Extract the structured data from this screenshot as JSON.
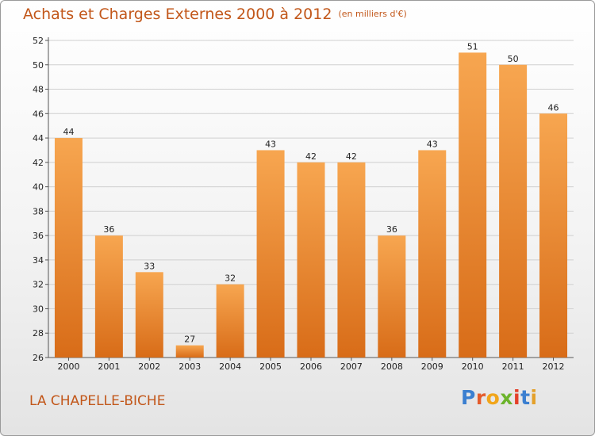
{
  "header": {
    "title": "Achats et Charges Externes 2000 à 2012",
    "subtitle": "(en milliers d'€)"
  },
  "footer": {
    "location": "LA CHAPELLE-BICHE",
    "logo_letters": [
      {
        "char": "P",
        "color": "#3b7fd0"
      },
      {
        "char": "r",
        "color": "#e45b2a"
      },
      {
        "char": "o",
        "color": "#f1a51a"
      },
      {
        "char": "x",
        "color": "#6cb42c"
      },
      {
        "char": "i",
        "color": "#e4402a"
      },
      {
        "char": "t",
        "color": "#3b7fd0"
      },
      {
        "char": "i",
        "color": "#e4a02a"
      }
    ]
  },
  "colors": {
    "bar_top": "#f7a650",
    "bar_bottom": "#d86c18",
    "title": "#c2571a",
    "grid": "#d0d0d0"
  },
  "chart_data": {
    "type": "bar",
    "title": "Achats et Charges Externes 2000 à 2012",
    "subtitle": "(en milliers d'€)",
    "xlabel": "",
    "ylabel": "",
    "categories": [
      "2000",
      "2001",
      "2002",
      "2003",
      "2004",
      "2005",
      "2006",
      "2007",
      "2008",
      "2009",
      "2010",
      "2011",
      "2012"
    ],
    "values": [
      44,
      36,
      33,
      27,
      32,
      43,
      42,
      42,
      36,
      43,
      51,
      50,
      46
    ],
    "ylim": [
      26,
      52
    ],
    "yticks": [
      26,
      28,
      30,
      32,
      34,
      36,
      38,
      40,
      42,
      44,
      46,
      48,
      50,
      52
    ],
    "grid": true,
    "legend": "none"
  }
}
